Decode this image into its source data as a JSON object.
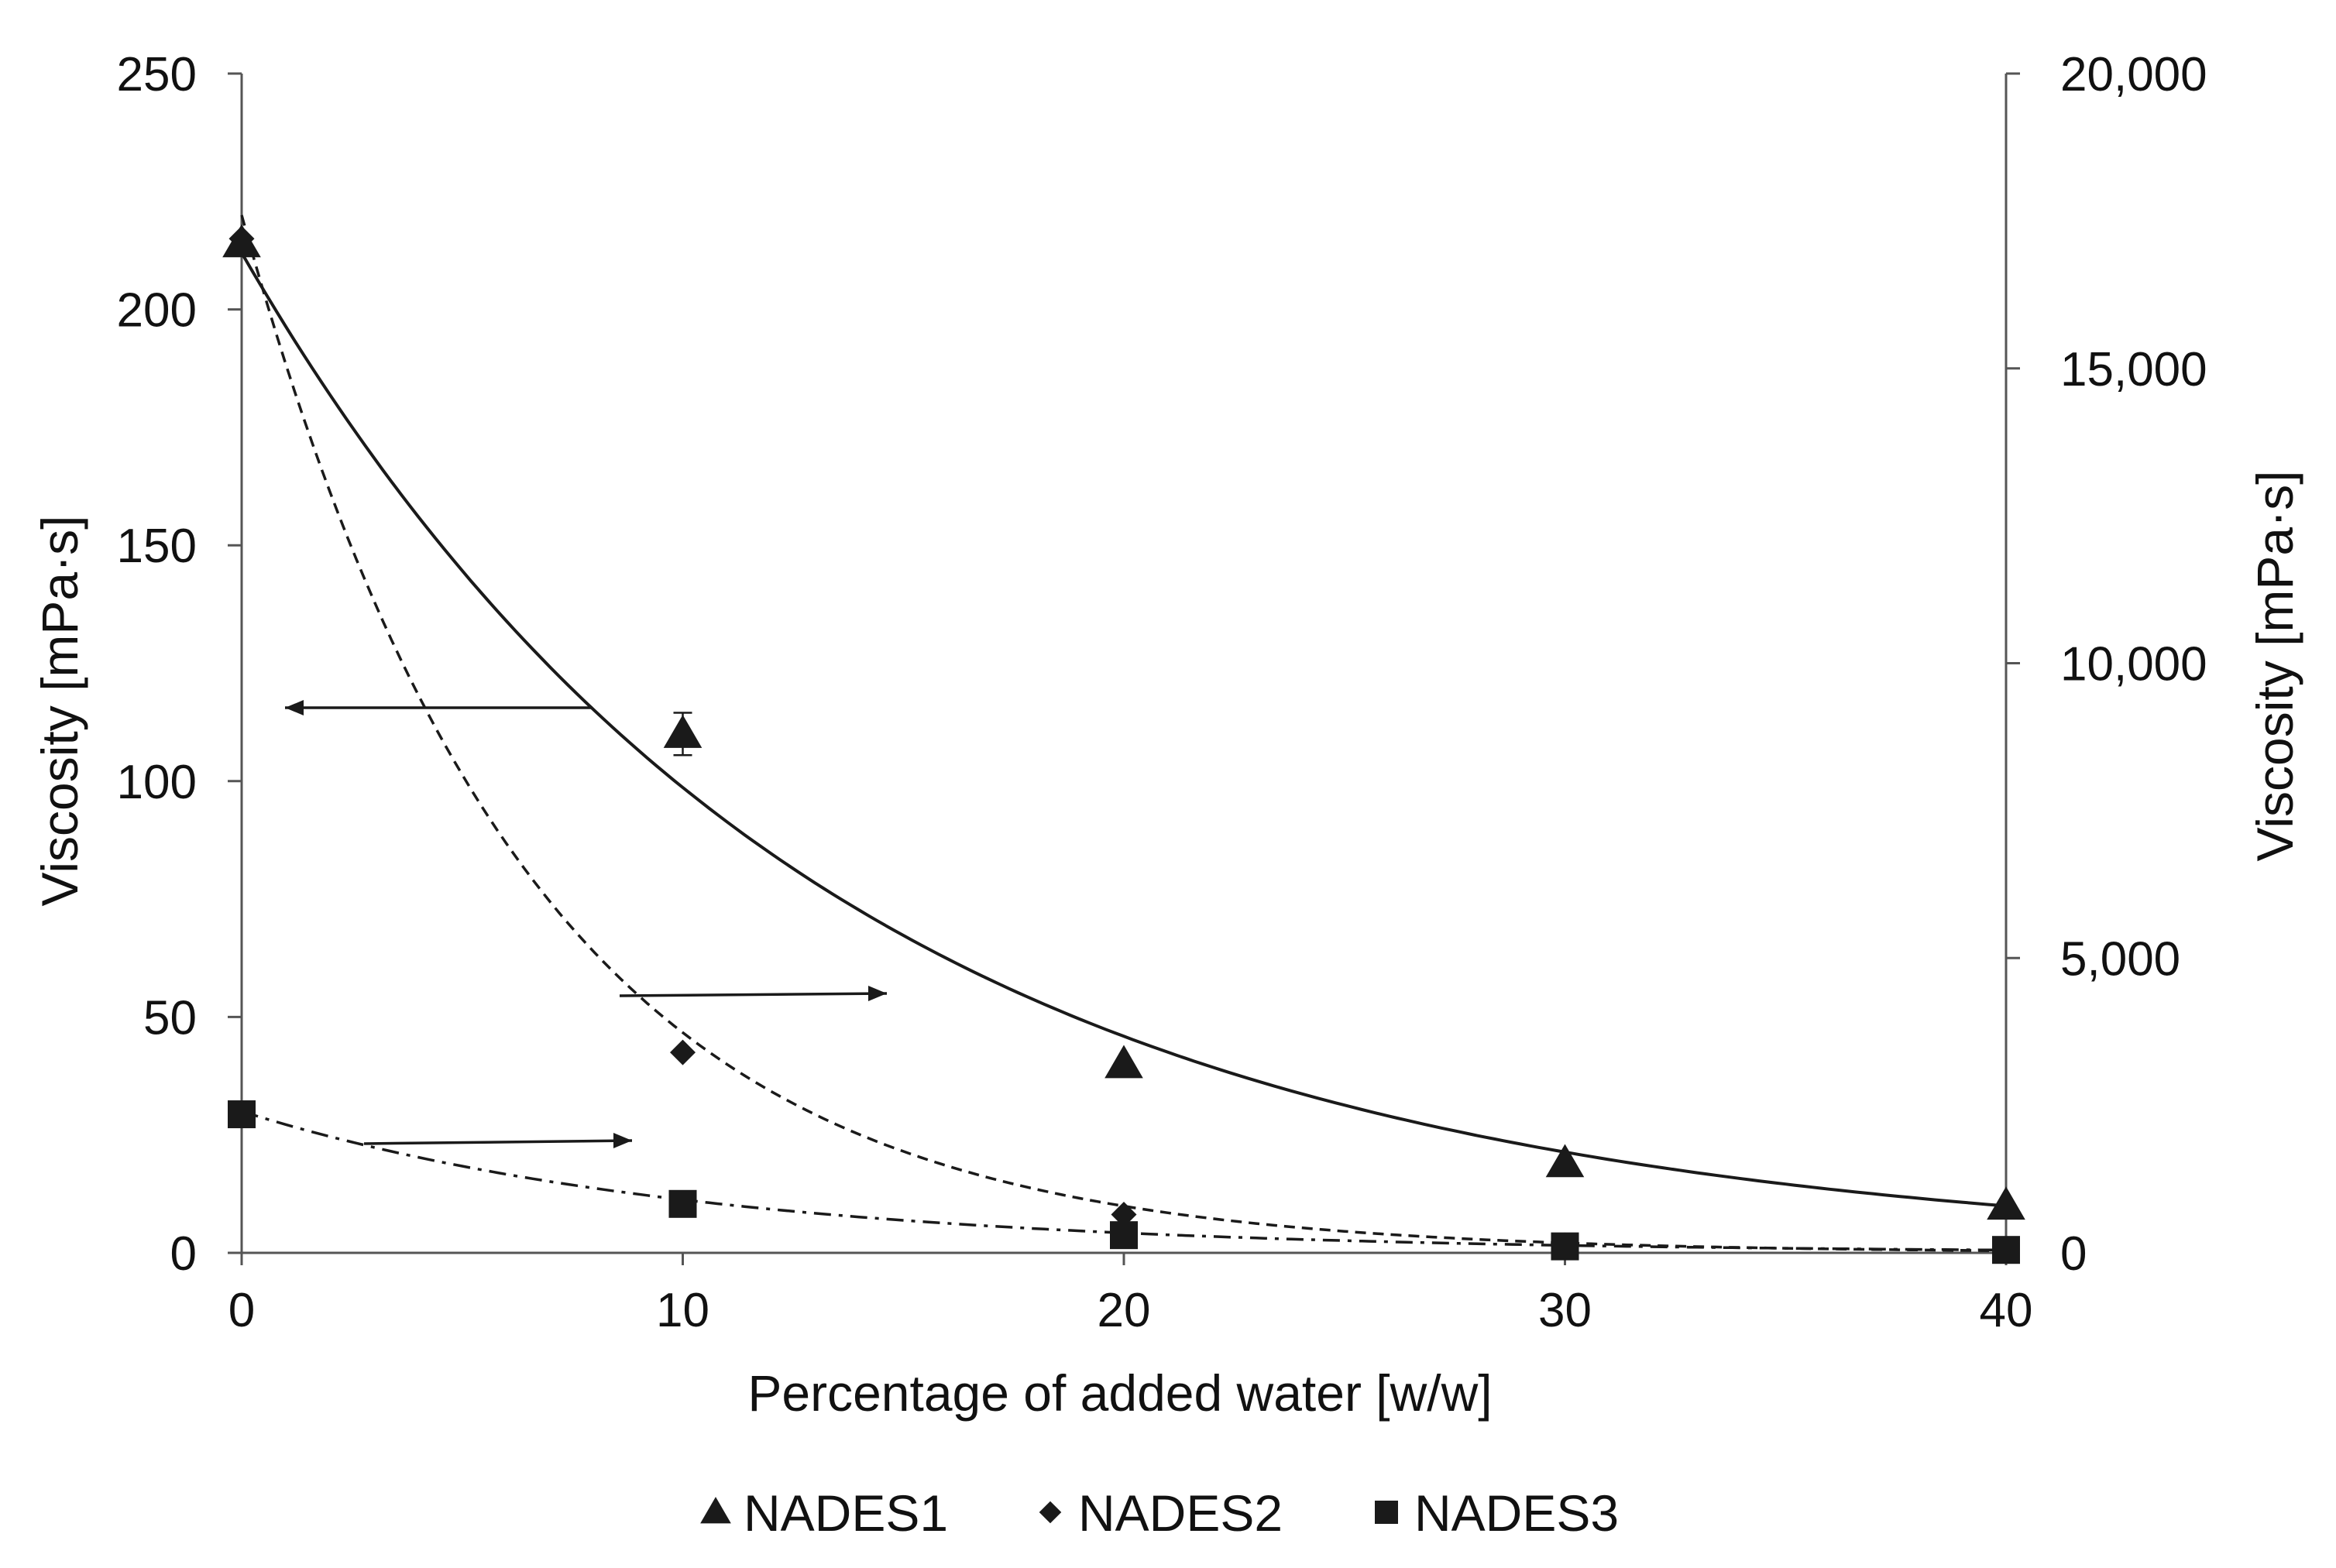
{
  "chart_data": {
    "type": "scatter",
    "title": "",
    "xlabel": "Percentage of added water [w/w]",
    "ylabel_left": "Viscosity [mPa·s]",
    "ylabel_right": "Viscosity [mPa·s]",
    "xlim": [
      0,
      40
    ],
    "ylim_left": [
      0,
      250
    ],
    "ylim_right": [
      0,
      20000
    ],
    "x_ticks": [
      "0",
      "10",
      "20",
      "30",
      "40"
    ],
    "y_left_ticks": [
      "0",
      "50",
      "100",
      "150",
      "200",
      "250"
    ],
    "y_right_ticks": [
      "0",
      "5,000",
      "10,000",
      "15,000",
      "20,000"
    ],
    "grid": false,
    "legend_position": "bottom",
    "series": [
      {
        "name": "NADES1",
        "marker": "triangle",
        "axis": "left",
        "x": [
          0,
          10,
          20,
          30,
          40
        ],
        "y": [
          214,
          110,
          40,
          19,
          10
        ],
        "y_error": [
          0,
          4.5,
          0,
          0,
          0
        ],
        "fit": {
          "style": "solid",
          "a": 212,
          "b": -0.0765
        }
      },
      {
        "name": "NADES2",
        "marker": "diamond",
        "axis": "right",
        "x": [
          0,
          10,
          20,
          30,
          40
        ],
        "y": [
          17200,
          3400,
          650,
          130,
          60
        ],
        "fit": {
          "style": "dashed",
          "a": 17600,
          "b": -0.155
        }
      },
      {
        "name": "NADES3",
        "marker": "square",
        "axis": "right",
        "x": [
          0,
          10,
          20,
          30,
          40
        ],
        "y": [
          2350,
          830,
          300,
          110,
          50
        ],
        "fit": {
          "style": "dash-dot",
          "a": 2400,
          "b": -0.098
        }
      }
    ],
    "annotations": [
      {
        "type": "arrow",
        "direction": "left",
        "points_to": "left-axis",
        "series": "NADES1"
      },
      {
        "type": "arrow",
        "direction": "right",
        "points_to": "right-axis",
        "series": "NADES2"
      },
      {
        "type": "arrow",
        "direction": "right",
        "points_to": "right-axis",
        "series": "NADES3"
      }
    ],
    "colors": {
      "ink": "#1a1a1a",
      "axis": "#555555",
      "background": "#ffffff"
    }
  }
}
